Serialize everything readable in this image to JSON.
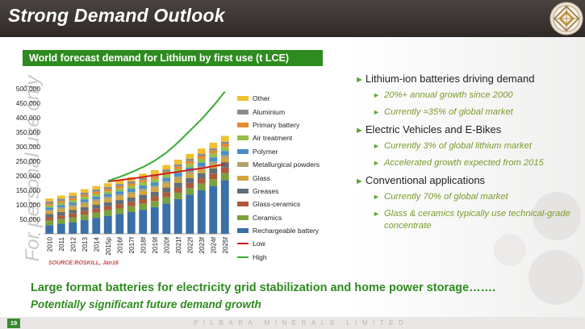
{
  "slide": {
    "title": "Strong Demand Outlook",
    "chart_title": "World forecast demand for Lithium by first use (t LCE)",
    "watermark": "For personal use only",
    "source": "SOURCE:ROSKILL, Jan16",
    "page_number": "19",
    "company": "PILBARA MINERALS LIMITED",
    "bottom_line1": "Large format batteries for electricity grid stabilization and home power storage…….",
    "bottom_line2": "Potentially significant future demand growth"
  },
  "bullets": [
    {
      "text": "Lithium-ion batteries driving demand",
      "sub": [
        "20%+ annual growth since 2000",
        "Currently ≈35% of global market"
      ]
    },
    {
      "text": "Electric Vehicles and E-Bikes",
      "sub": [
        "Currently 3% of global lithium market",
        "Accelerated growth expected from 2015"
      ]
    },
    {
      "text": "Conventional applications",
      "sub": [
        "Currently 70% of global market",
        "Glass & ceramics typically use technical-grade concentrate"
      ]
    }
  ],
  "chart_data": {
    "type": "bar",
    "stacked": true,
    "title": "World forecast demand for Lithium by first use (t LCE)",
    "categories": [
      "2010",
      "2011",
      "2012",
      "2013",
      "2014",
      "2015p",
      "2016f",
      "2017f",
      "2018f",
      "2019f",
      "2020f",
      "2021f",
      "2022f",
      "2023f",
      "2024f",
      "2025f"
    ],
    "ylim": [
      0,
      500000
    ],
    "yticks": [
      "-",
      "50,000",
      "100,000",
      "150,000",
      "200,000",
      "250,000",
      "300,000",
      "350,000",
      "400,000",
      "450,000",
      "500,000"
    ],
    "series": [
      {
        "name": "Rechargeable battery",
        "color": "#3a6fa8",
        "values": [
          30000,
          35000,
          40000,
          48000,
          55000,
          62000,
          68000,
          75000,
          83000,
          92000,
          105000,
          120000,
          135000,
          150000,
          165000,
          185000
        ]
      },
      {
        "name": "Ceramics",
        "color": "#7aa23c",
        "values": [
          15000,
          16000,
          17000,
          18000,
          18000,
          19000,
          19500,
          20000,
          20500,
          21000,
          21500,
          22000,
          22500,
          23000,
          23500,
          24000
        ]
      },
      {
        "name": "Glass-ceramics",
        "color": "#ad5a3d",
        "values": [
          12000,
          12500,
          13000,
          13500,
          14000,
          14500,
          15000,
          15500,
          16000,
          16500,
          17000,
          17500,
          18000,
          18500,
          19000,
          19500
        ]
      },
      {
        "name": "Greases",
        "color": "#5f6f7a",
        "values": [
          11000,
          11500,
          12000,
          12500,
          13000,
          13500,
          14000,
          14500,
          15000,
          15500,
          16000,
          16500,
          17000,
          17500,
          18000,
          18500
        ]
      },
      {
        "name": "Glass",
        "color": "#d4a63a",
        "values": [
          8000,
          8500,
          9000,
          9500,
          10000,
          10000,
          10500,
          10500,
          11000,
          11000,
          11500,
          11500,
          12000,
          12000,
          12500,
          12500
        ]
      },
      {
        "name": "Metallurgical powders",
        "color": "#b2a46e",
        "values": [
          7000,
          7500,
          8000,
          8000,
          8500,
          8500,
          9000,
          9000,
          9500,
          9500,
          10000,
          10000,
          10500,
          10500,
          11000,
          11000
        ]
      },
      {
        "name": "Polymer",
        "color": "#4a8ec9",
        "values": [
          8000,
          8500,
          9000,
          9500,
          10000,
          10000,
          10500,
          11000,
          11500,
          12000,
          12500,
          13000,
          13500,
          14000,
          14500,
          15000
        ]
      },
      {
        "name": "Air treatment",
        "color": "#94c04a",
        "values": [
          7000,
          7500,
          8000,
          8500,
          9000,
          9000,
          9500,
          10000,
          10500,
          11000,
          11500,
          12000,
          12500,
          13000,
          13500,
          14000
        ]
      },
      {
        "name": "Primary battery",
        "color": "#e68a2e",
        "values": [
          6000,
          6500,
          7000,
          7000,
          7500,
          7500,
          8000,
          8000,
          8500,
          8500,
          9000,
          9000,
          9500,
          9500,
          10000,
          10000
        ]
      },
      {
        "name": "Aluminium",
        "color": "#8c8c8c",
        "values": [
          8000,
          8000,
          8000,
          8000,
          8000,
          8000,
          8000,
          8000,
          8000,
          8000,
          8000,
          8000,
          8000,
          8000,
          8000,
          8000
        ]
      },
      {
        "name": "Other",
        "color": "#f0c030",
        "values": [
          10000,
          10500,
          11000,
          11500,
          12000,
          12500,
          13000,
          13500,
          14000,
          14500,
          15000,
          16000,
          17000,
          18000,
          19000,
          20000
        ]
      }
    ],
    "lines": [
      {
        "name": "Low",
        "color": "#d0201c",
        "values": [
          null,
          null,
          null,
          null,
          null,
          180000,
          185000,
          190000,
          196000,
          202000,
          208000,
          214000,
          220000,
          226000,
          233000,
          240000
        ]
      },
      {
        "name": "High",
        "color": "#3aaa35",
        "values": [
          null,
          null,
          null,
          null,
          null,
          182000,
          196000,
          212000,
          230000,
          252000,
          280000,
          315000,
          355000,
          395000,
          440000,
          490000
        ]
      }
    ]
  },
  "colors": {
    "header_bg": "#3a3330",
    "accent_green": "#2e8b1f",
    "sub_bullet": "#7b9b2a"
  }
}
